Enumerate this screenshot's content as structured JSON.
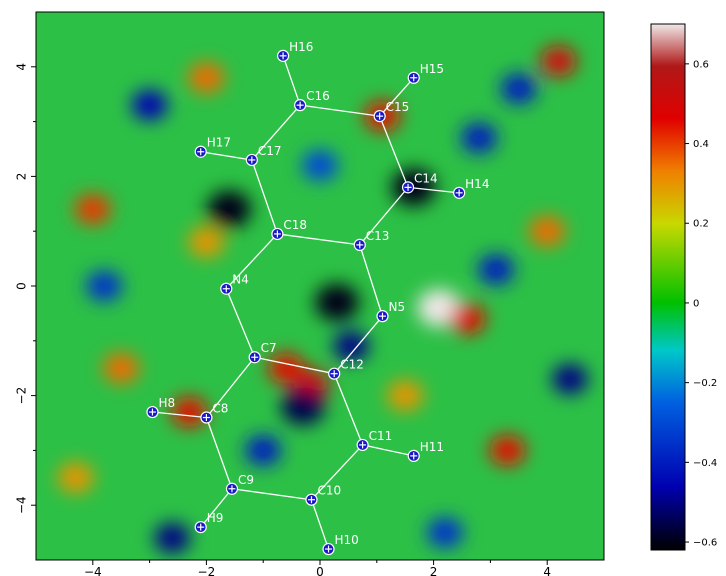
{
  "chart_data": {
    "type": "heatmap",
    "title": "",
    "xlabel": "",
    "ylabel": "",
    "xlim": [
      -5,
      5
    ],
    "ylim": [
      -5,
      5
    ],
    "x_ticks": [
      -4,
      -2,
      0,
      2,
      4
    ],
    "y_ticks": [
      -4,
      -2,
      0,
      2,
      4
    ],
    "x_tick_labels": [
      "−4",
      "−2",
      "0",
      "2",
      "4"
    ],
    "y_tick_labels": [
      "−4",
      "−2",
      "0",
      "2",
      "4"
    ],
    "colorbar": {
      "range": [
        -0.62,
        0.7
      ],
      "ticks": [
        -0.6,
        -0.4,
        -0.2,
        0,
        0.2,
        0.4,
        0.6
      ],
      "tick_labels": [
        "−0.6",
        "−0.4",
        "−0.2",
        "0",
        "0.2",
        "0.4",
        "0.6"
      ],
      "colors": [
        "#000000",
        "#0000cc",
        "#00cccc",
        "#00cc00",
        "#dddd00",
        "#dd0000",
        "#ffffff"
      ]
    },
    "atoms": [
      {
        "label": "H16",
        "x": -0.65,
        "y": 4.2
      },
      {
        "label": "H15",
        "x": 1.65,
        "y": 3.8
      },
      {
        "label": "C16",
        "x": -0.35,
        "y": 3.3
      },
      {
        "label": "C15",
        "x": 1.05,
        "y": 3.1
      },
      {
        "label": "H17",
        "x": -2.1,
        "y": 2.45
      },
      {
        "label": "C17",
        "x": -1.2,
        "y": 2.3
      },
      {
        "label": "C14",
        "x": 1.55,
        "y": 1.8
      },
      {
        "label": "H14",
        "x": 2.45,
        "y": 1.7
      },
      {
        "label": "C18",
        "x": -0.75,
        "y": 0.95
      },
      {
        "label": "C13",
        "x": 0.7,
        "y": 0.75
      },
      {
        "label": "N4",
        "x": -1.65,
        "y": -0.05
      },
      {
        "label": "N5",
        "x": 1.1,
        "y": -0.55
      },
      {
        "label": "C7",
        "x": -1.15,
        "y": -1.3
      },
      {
        "label": "C12",
        "x": 0.25,
        "y": -1.6
      },
      {
        "label": "H8",
        "x": -2.95,
        "y": -2.3
      },
      {
        "label": "C8",
        "x": -2.0,
        "y": -2.4
      },
      {
        "label": "C11",
        "x": 0.75,
        "y": -2.9
      },
      {
        "label": "H11",
        "x": 1.65,
        "y": -3.1
      },
      {
        "label": "C9",
        "x": -1.55,
        "y": -3.7
      },
      {
        "label": "C10",
        "x": -0.15,
        "y": -3.9
      },
      {
        "label": "H9",
        "x": -2.1,
        "y": -4.4
      },
      {
        "label": "H10",
        "x": 0.15,
        "y": -4.8
      }
    ],
    "bonds": [
      [
        "H16",
        "C16"
      ],
      [
        "C16",
        "C15"
      ],
      [
        "C15",
        "H15"
      ],
      [
        "C16",
        "C17"
      ],
      [
        "C17",
        "H17"
      ],
      [
        "C15",
        "C14"
      ],
      [
        "C14",
        "H14"
      ],
      [
        "C17",
        "C18"
      ],
      [
        "C14",
        "C13"
      ],
      [
        "C18",
        "C13"
      ],
      [
        "C18",
        "N4"
      ],
      [
        "C13",
        "N5"
      ],
      [
        "N4",
        "C7"
      ],
      [
        "N5",
        "C12"
      ],
      [
        "C7",
        "C12"
      ],
      [
        "C7",
        "C8"
      ],
      [
        "C8",
        "H8"
      ],
      [
        "C12",
        "C11"
      ],
      [
        "C11",
        "H11"
      ],
      [
        "C8",
        "C9"
      ],
      [
        "C11",
        "C10"
      ],
      [
        "C9",
        "C10"
      ],
      [
        "C9",
        "H9"
      ],
      [
        "C10",
        "H10"
      ]
    ],
    "field_features": [
      {
        "x": 2.1,
        "y": -0.4,
        "value": 0.7
      },
      {
        "x": 2.6,
        "y": -0.6,
        "value": 0.45
      },
      {
        "x": -1.6,
        "y": 1.4,
        "value": -0.6
      },
      {
        "x": 1.65,
        "y": 1.8,
        "value": -0.6
      },
      {
        "x": -0.15,
        "y": -1.8,
        "value": 0.5
      },
      {
        "x": -0.6,
        "y": -1.5,
        "value": 0.45
      },
      {
        "x": 0.3,
        "y": -0.3,
        "value": -0.6
      },
      {
        "x": -0.3,
        "y": -2.2,
        "value": -0.55
      },
      {
        "x": 0.55,
        "y": -1.1,
        "value": -0.5
      },
      {
        "x": -2.3,
        "y": -2.3,
        "value": 0.45
      },
      {
        "x": 4.2,
        "y": 4.1,
        "value": 0.5
      },
      {
        "x": -4.0,
        "y": 1.4,
        "value": 0.4
      },
      {
        "x": -2.6,
        "y": -4.6,
        "value": -0.5
      },
      {
        "x": 3.1,
        "y": 0.3,
        "value": -0.4
      },
      {
        "x": -3.5,
        "y": -1.5,
        "value": 0.35
      },
      {
        "x": 3.3,
        "y": -3.0,
        "value": 0.45
      },
      {
        "x": 4.4,
        "y": -1.7,
        "value": -0.5
      },
      {
        "x": -3.0,
        "y": 3.3,
        "value": -0.45
      },
      {
        "x": 1.1,
        "y": 3.1,
        "value": 0.45
      },
      {
        "x": -2.0,
        "y": 3.8,
        "value": 0.35
      },
      {
        "x": 2.8,
        "y": 2.7,
        "value": -0.4
      },
      {
        "x": -4.3,
        "y": -3.5,
        "value": 0.3
      },
      {
        "x": 4.0,
        "y": 1.0,
        "value": 0.35
      },
      {
        "x": -3.8,
        "y": 0.0,
        "value": -0.35
      },
      {
        "x": -1.0,
        "y": -3.0,
        "value": -0.4
      },
      {
        "x": 2.2,
        "y": -4.5,
        "value": -0.35
      },
      {
        "x": -2.0,
        "y": 0.8,
        "value": 0.3
      },
      {
        "x": 1.5,
        "y": -2.0,
        "value": 0.3
      },
      {
        "x": 0.0,
        "y": 2.2,
        "value": -0.3
      },
      {
        "x": 3.5,
        "y": 3.6,
        "value": -0.4
      }
    ]
  }
}
